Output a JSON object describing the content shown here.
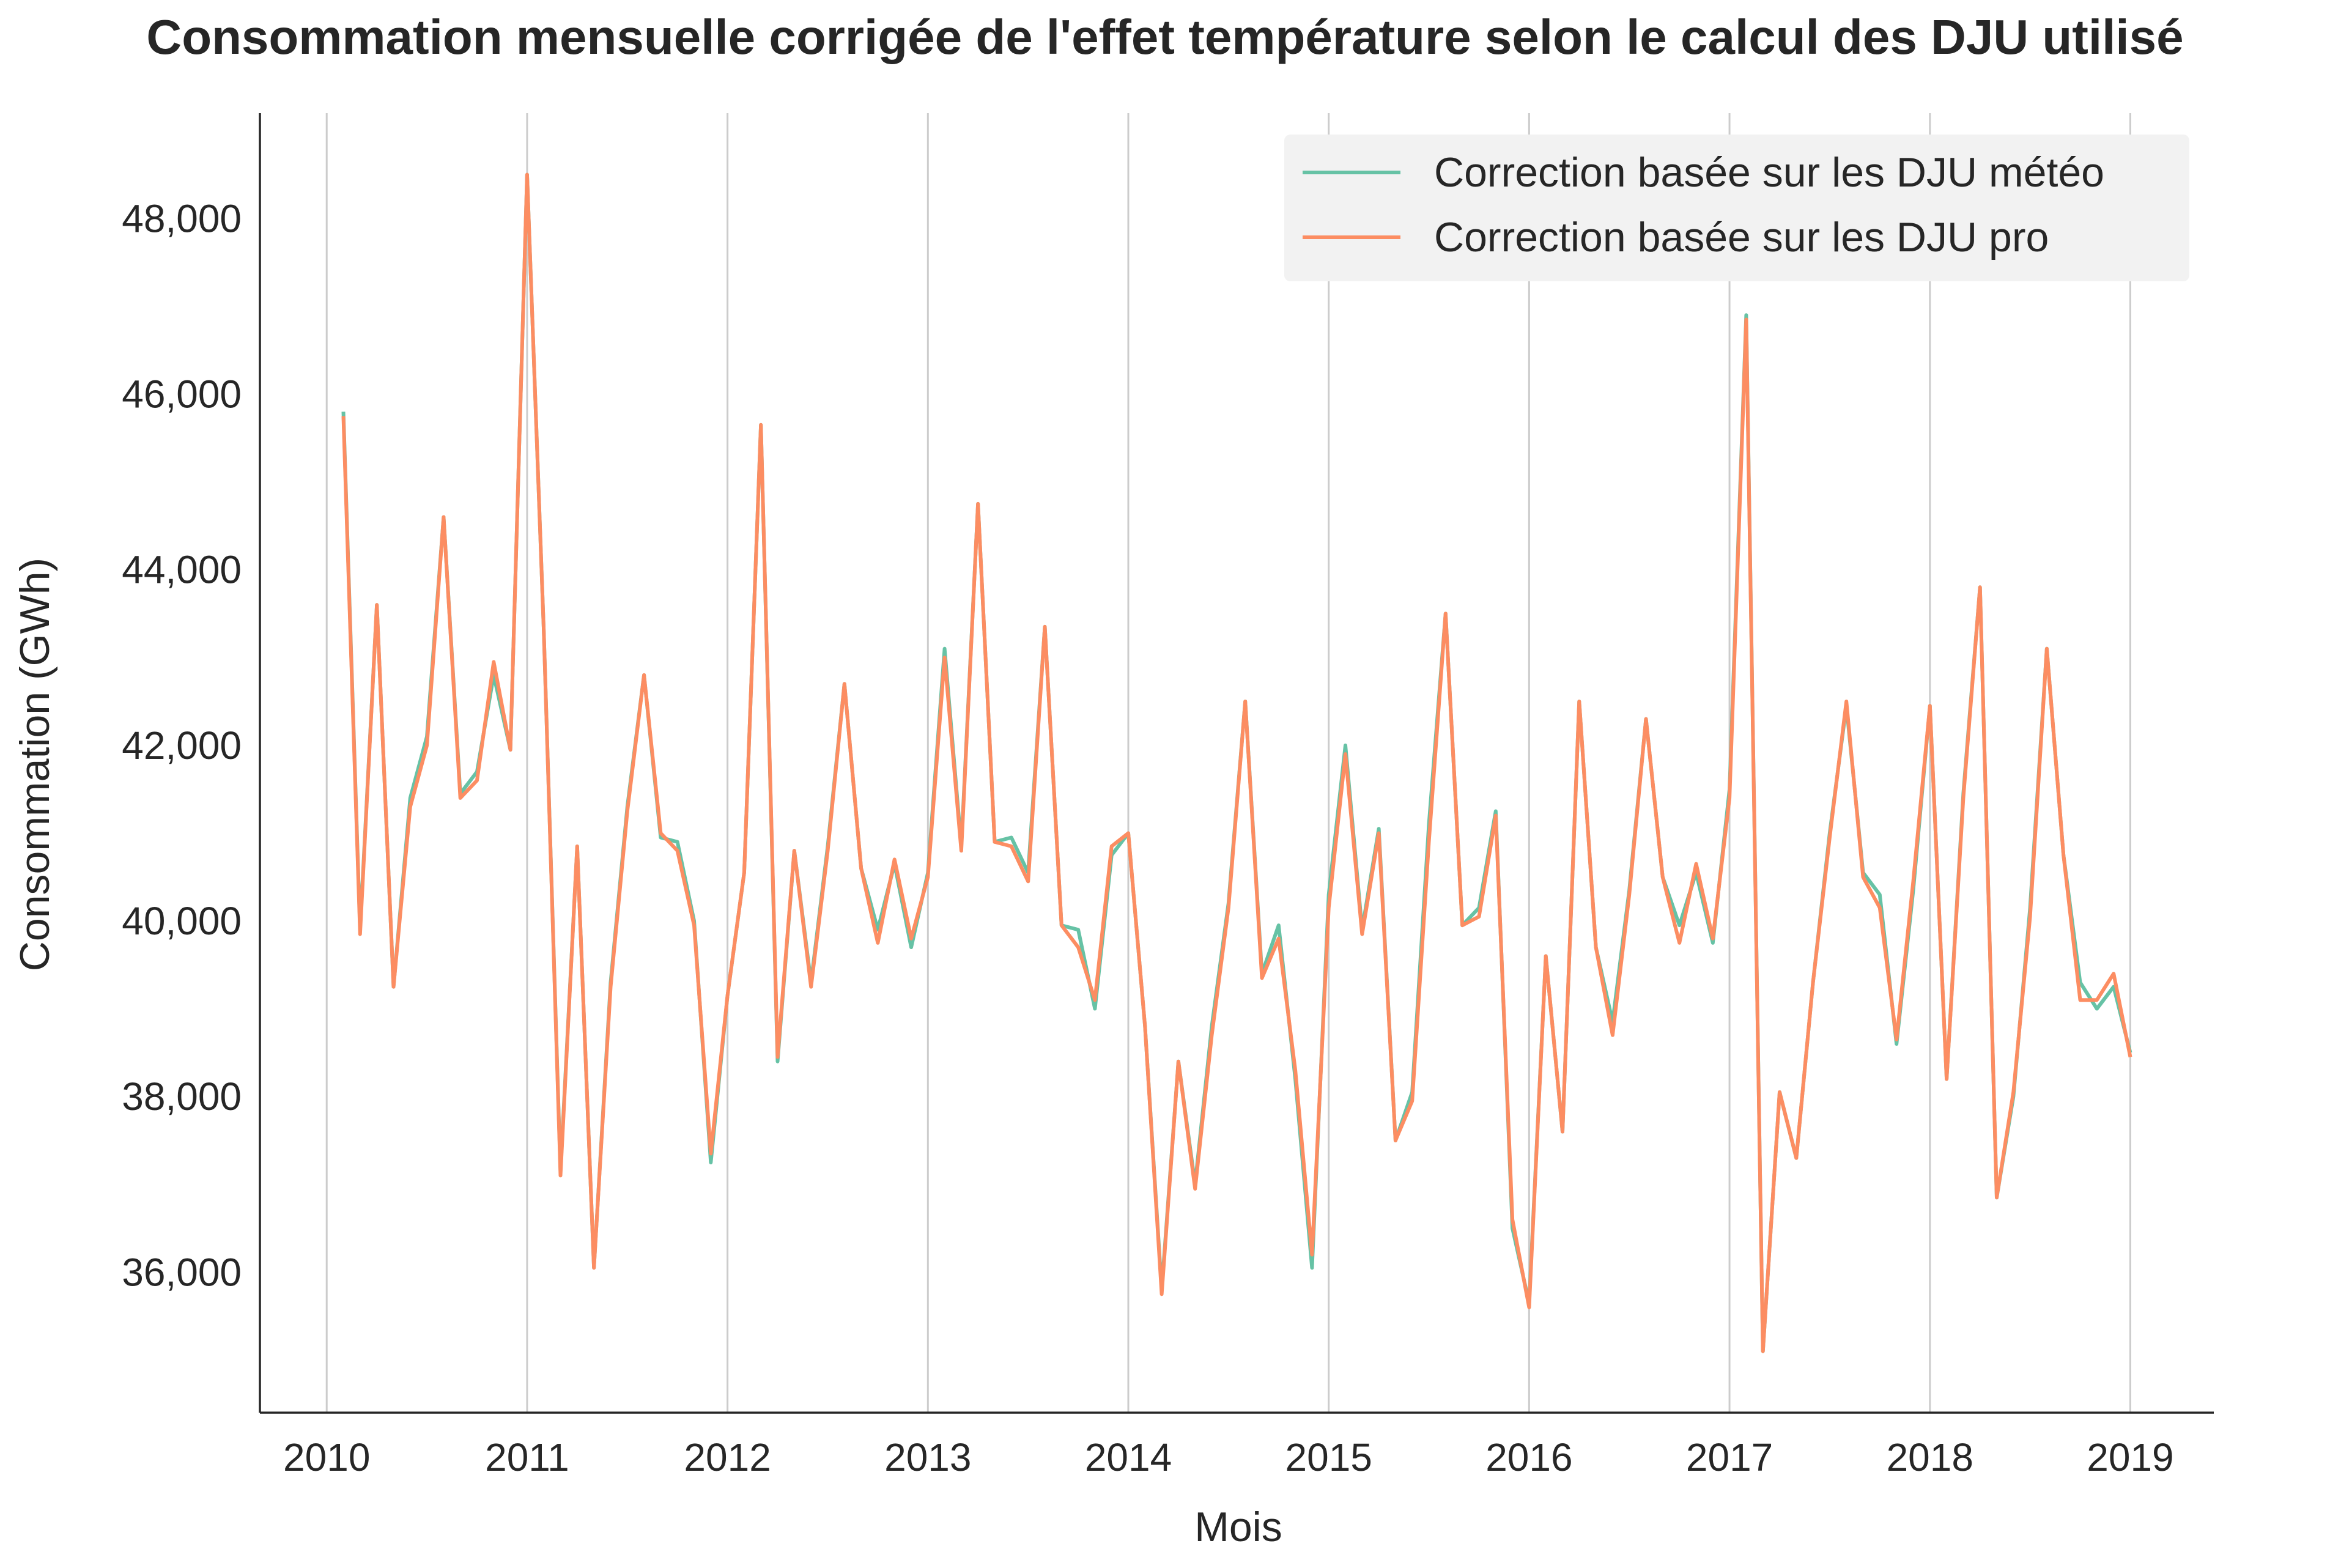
{
  "chart_data": {
    "type": "line",
    "title": "Consommation mensuelle corrigée de l'effet température selon le calcul des DJU utilisé",
    "xlabel": "Mois",
    "ylabel": "Consommation (GWh)",
    "x_ticks": [
      "2010",
      "2011",
      "2012",
      "2013",
      "2014",
      "2015",
      "2016",
      "2017",
      "2018",
      "2019"
    ],
    "y_ticks": [
      "36,000",
      "38,000",
      "40,000",
      "42,000",
      "44,000",
      "46,000",
      "48,000"
    ],
    "y_tick_values": [
      36000,
      38000,
      40000,
      42000,
      44000,
      46000,
      48000
    ],
    "xlim": [
      "2009-09",
      "2019-06"
    ],
    "ylim": [
      34400,
      49200
    ],
    "grid": "vertical",
    "legend_position": "top-right",
    "x": [
      "2010-02",
      "2010-03",
      "2010-04",
      "2010-05",
      "2010-06",
      "2010-07",
      "2010-08",
      "2010-09",
      "2010-10",
      "2010-11",
      "2010-12",
      "2011-01",
      "2011-02",
      "2011-03",
      "2011-04",
      "2011-05",
      "2011-06",
      "2011-07",
      "2011-08",
      "2011-09",
      "2011-10",
      "2011-11",
      "2011-12",
      "2012-01",
      "2012-02",
      "2012-03",
      "2012-04",
      "2012-05",
      "2012-06",
      "2012-07",
      "2012-08",
      "2012-09",
      "2012-10",
      "2012-11",
      "2012-12",
      "2013-01",
      "2013-02",
      "2013-03",
      "2013-04",
      "2013-05",
      "2013-06",
      "2013-07",
      "2013-08",
      "2013-09",
      "2013-10",
      "2013-11",
      "2013-12",
      "2014-01",
      "2014-02",
      "2014-03",
      "2014-04",
      "2014-05",
      "2014-06",
      "2014-07",
      "2014-08",
      "2014-09",
      "2014-10",
      "2014-11",
      "2014-12",
      "2015-01",
      "2015-02",
      "2015-03",
      "2015-04",
      "2015-05",
      "2015-06",
      "2015-07",
      "2015-08",
      "2015-09",
      "2015-10",
      "2015-11",
      "2015-12",
      "2016-01",
      "2016-02",
      "2016-03",
      "2016-04",
      "2016-05",
      "2016-06",
      "2016-07",
      "2016-08",
      "2016-09",
      "2016-10",
      "2016-11",
      "2016-12",
      "2017-01",
      "2017-02",
      "2017-03",
      "2017-04",
      "2017-05",
      "2017-06",
      "2017-07",
      "2017-08",
      "2017-09",
      "2017-10",
      "2017-11",
      "2017-12",
      "2018-01",
      "2018-02",
      "2018-03",
      "2018-04",
      "2018-05",
      "2018-06",
      "2018-07",
      "2018-08",
      "2018-09",
      "2018-10",
      "2018-11",
      "2018-12",
      "2019-01"
    ],
    "series": [
      {
        "name": "Correction basée sur les DJU météo",
        "color": "#66c2a5",
        "values": [
          45800,
          39900,
          43600,
          39250,
          41400,
          42100,
          44600,
          41450,
          41700,
          42800,
          41950,
          48500,
          43300,
          37150,
          40850,
          36050,
          39300,
          41300,
          42800,
          40950,
          40900,
          40000,
          37250,
          39150,
          40550,
          45650,
          38400,
          40800,
          39300,
          40850,
          42700,
          40600,
          39900,
          40650,
          39700,
          40550,
          43100,
          40850,
          44750,
          40900,
          40950,
          40550,
          43350,
          39950,
          39900,
          39000,
          40750,
          41000,
          38800,
          35800,
          38400,
          37000,
          38800,
          40200,
          42500,
          39400,
          39950,
          38200,
          36050,
          40300,
          42000,
          39900,
          41050,
          37500,
          38050,
          41100,
          43500,
          39950,
          40150,
          41250,
          36500,
          35650,
          39600,
          37600,
          42500,
          39700,
          38850,
          40350,
          42300,
          40500,
          39950,
          40550,
          39750,
          41500,
          46900,
          35100,
          38050,
          37300,
          39300,
          41000,
          42450,
          40550,
          40300,
          38600,
          40350,
          42450,
          38200,
          41450,
          43800,
          36850,
          38000,
          40150,
          43100,
          40750,
          39300,
          39000,
          39250,
          38500
        ]
      },
      {
        "name": "Correction basée sur les DJU pro",
        "color": "#fc8d62",
        "values": [
          45750,
          39850,
          43600,
          39250,
          41300,
          42000,
          44600,
          41400,
          41600,
          42950,
          41950,
          48500,
          43300,
          37100,
          40850,
          36050,
          39250,
          41250,
          42800,
          41000,
          40800,
          39950,
          37350,
          39150,
          40550,
          45650,
          38450,
          40800,
          39250,
          40800,
          42700,
          40600,
          39750,
          40700,
          39800,
          40500,
          43000,
          40800,
          44750,
          40900,
          40850,
          40450,
          43350,
          39950,
          39700,
          39100,
          40850,
          41000,
          38800,
          35750,
          38400,
          36950,
          38700,
          40150,
          42500,
          39350,
          39800,
          38300,
          36200,
          40150,
          41900,
          39850,
          41000,
          37500,
          37950,
          40900,
          43500,
          39950,
          40050,
          41200,
          36600,
          35600,
          39600,
          37600,
          42500,
          39700,
          38700,
          40300,
          42300,
          40500,
          39750,
          40650,
          39800,
          41400,
          46850,
          35100,
          38050,
          37300,
          39300,
          40950,
          42500,
          40500,
          40150,
          38650,
          40450,
          42450,
          38200,
          41400,
          43800,
          36850,
          38050,
          40050,
          43100,
          40750,
          39100,
          39100,
          39400,
          38450
        ]
      }
    ]
  }
}
